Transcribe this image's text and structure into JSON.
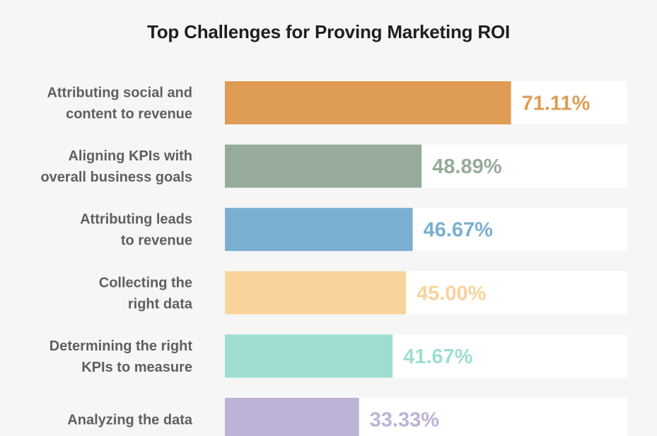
{
  "chart_data": {
    "type": "bar",
    "orientation": "horizontal",
    "title": "Top Challenges for Proving Marketing ROI",
    "xlabel": "",
    "ylabel": "",
    "xlim": [
      0,
      100
    ],
    "grid": false,
    "legend": "none",
    "categories": [
      [
        "Attributing social and",
        "content to revenue"
      ],
      [
        "Aligning KPIs with",
        "overall business goals"
      ],
      [
        "Attributing leads",
        "to revenue"
      ],
      [
        "Collecting the",
        "right data"
      ],
      [
        "Determining the right",
        "KPIs to measure"
      ],
      [
        "Analyzing the data"
      ]
    ],
    "values": [
      71.11,
      48.89,
      46.67,
      45.0,
      41.67,
      33.33
    ],
    "value_labels": [
      "71.11%",
      "48.89%",
      "46.67%",
      "45.00%",
      "41.67%",
      "33.33%"
    ],
    "colors": [
      "#df9c55",
      "#96ab9a",
      "#7bafd2",
      "#f9d39b",
      "#9fddd2",
      "#beb2d6"
    ],
    "track_color": "#ffffff",
    "background": "#f6f6f6",
    "label_color": "#5f5f5f",
    "title_color": "#1f1f1f"
  }
}
